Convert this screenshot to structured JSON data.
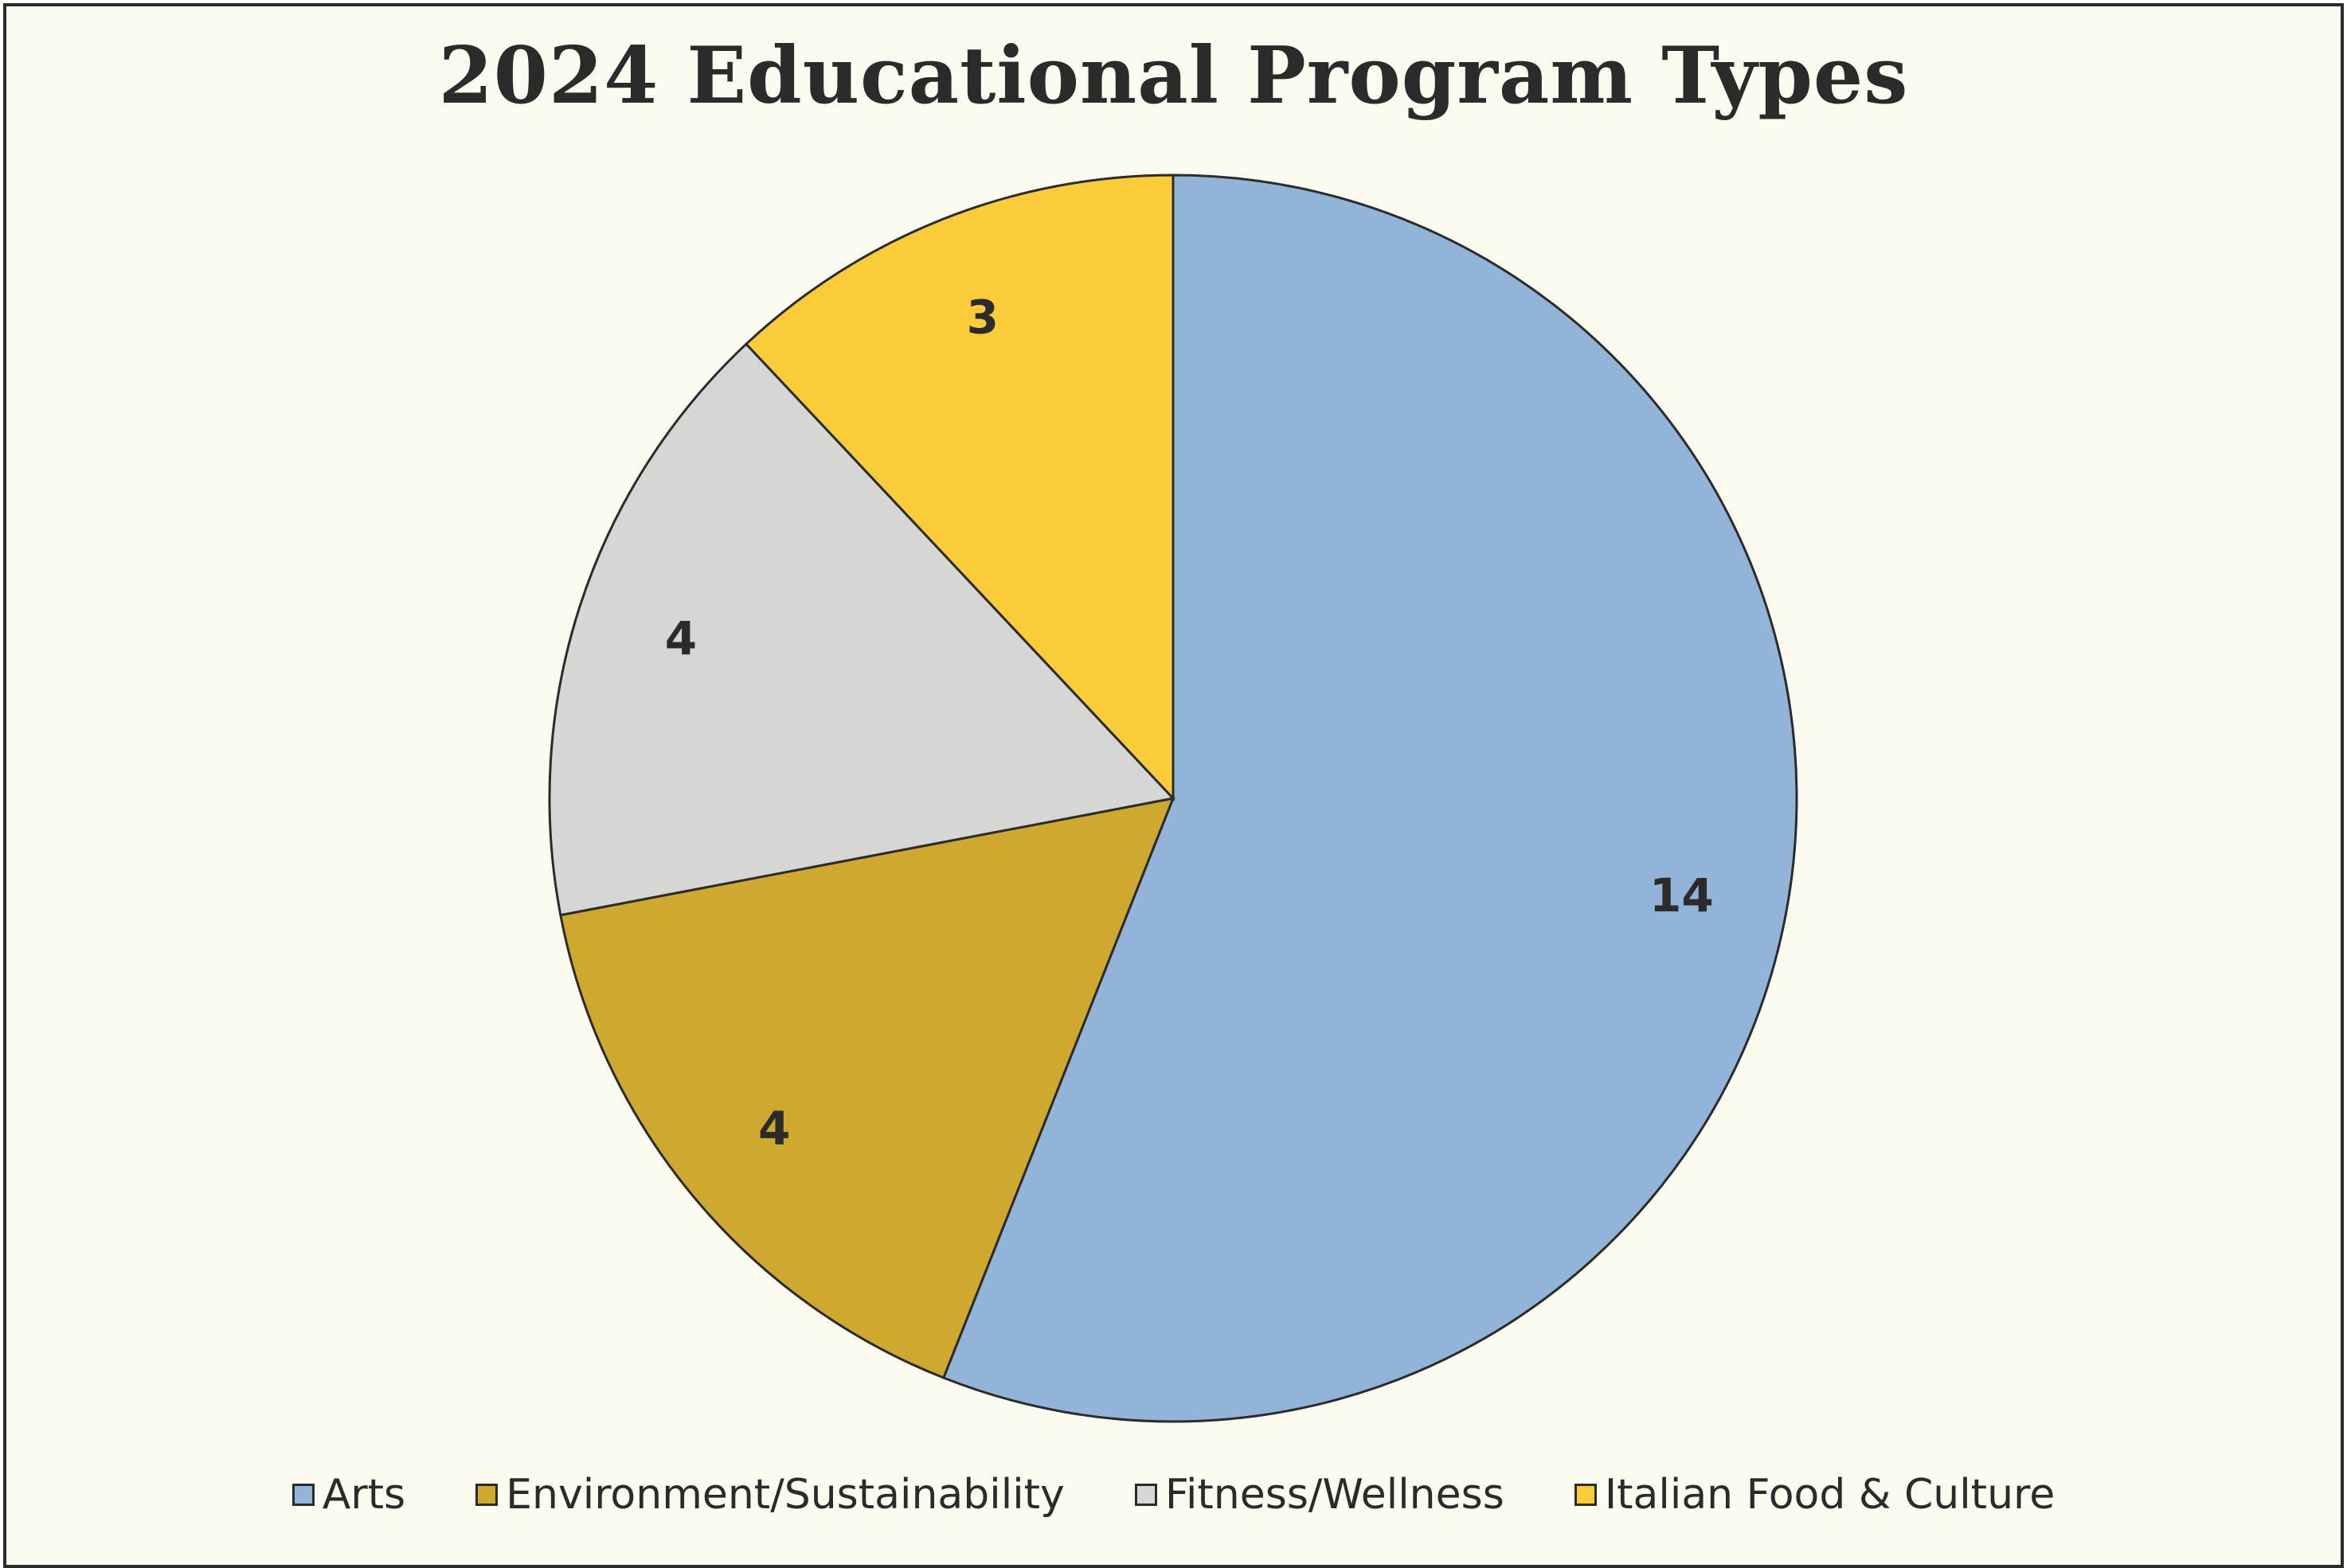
{
  "chart_data": {
    "type": "pie",
    "title": "2024 Educational Program Types",
    "categories": [
      "Arts",
      "Environment/Sustainability",
      "Fitness/Wellness",
      "Italian Food & Culture"
    ],
    "values": [
      14,
      4,
      4,
      3
    ],
    "colors": [
      "#92b4d9",
      "#cfa830",
      "#d6d6d4",
      "#fbcc3a"
    ],
    "start_angle": "12 o'clock",
    "direction": "clockwise",
    "data_labels": [
      "14",
      "4",
      "4",
      "3"
    ],
    "legend_position": "bottom"
  },
  "style": {
    "background": "#fbfaee",
    "border": "#2b2b2b",
    "slice_stroke": "#2b2b2b"
  }
}
